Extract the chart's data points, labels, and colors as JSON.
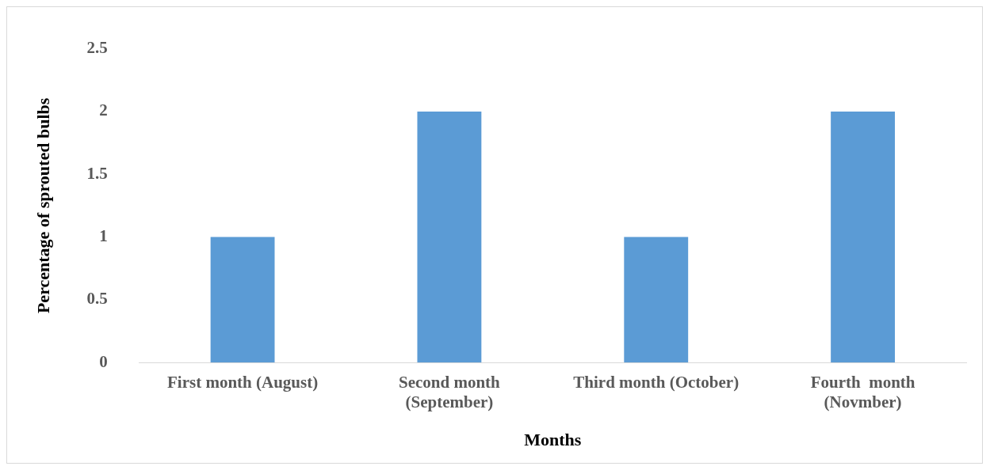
{
  "chart_data": {
    "type": "bar",
    "xlabel": "Months",
    "ylabel": "Percentage of sprouted bulbs",
    "categories": [
      "First month (August)",
      "Second month (September)",
      "Third month (October)",
      "Fourth  month (Novmber)"
    ],
    "values": [
      1,
      2,
      1,
      2
    ],
    "color": "#5b9bd5",
    "ylim": [
      0,
      2.5
    ],
    "yticks": [
      0,
      0.5,
      1,
      1.5,
      2,
      2.5
    ],
    "grid": false,
    "legend": false
  }
}
